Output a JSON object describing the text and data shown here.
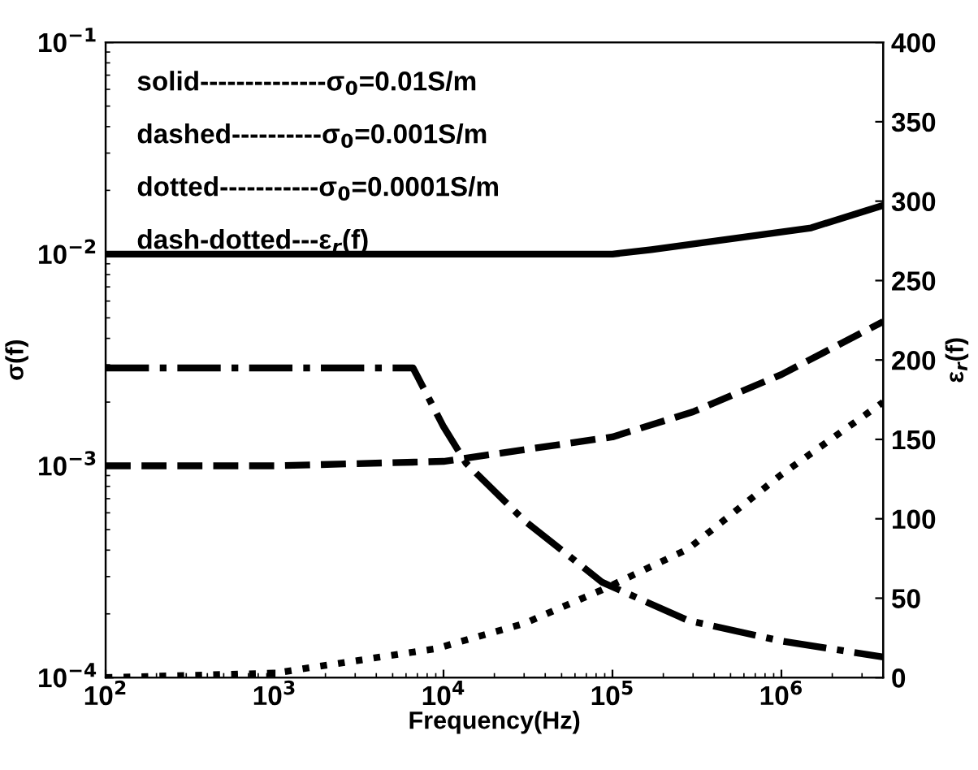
{
  "chart_data": {
    "type": "line",
    "xlabel": "Frequency(Hz)",
    "ylabel": "σ(f)",
    "y2label": "ε$_{r}$(f)",
    "log": "xy",
    "xlim": [
      100,
      4000000
    ],
    "xticks": [
      {
        "value": 100,
        "label": "10$^{2}$"
      },
      {
        "value": 1000,
        "label": "10$^{3}$"
      },
      {
        "value": 10000,
        "label": "10$^{4}$"
      },
      {
        "value": 100000,
        "label": "10$^{5}$"
      },
      {
        "value": 1000000,
        "label": "10$^{6}$"
      }
    ],
    "ylim": [
      0.0001,
      0.1
    ],
    "yticks": [
      {
        "value": 0.0001,
        "label": "10$^{−4}$"
      },
      {
        "value": 0.001,
        "label": "10$^{−3}$"
      },
      {
        "value": 0.01,
        "label": "10$^{−2}$"
      },
      {
        "value": 0.1,
        "label": "10$^{−1}$"
      }
    ],
    "y2lim": [
      0,
      400
    ],
    "y2ticks": [
      0,
      50,
      100,
      150,
      200,
      250,
      300,
      350,
      400
    ],
    "annotations": [
      "solid--------------σ$_{0}$=0.01S/m",
      "dashed----------σ$_{0}$=0.001S/m",
      "dotted-----------σ$_{0}$=0.0001S/m",
      "dash-dotted---ε$_{r}$(f)"
    ],
    "series": [
      {
        "color": "#000000",
        "line_style": "solid",
        "x": [
          100,
          1000,
          10000,
          100000,
          170000,
          1500000,
          4000000
        ],
        "values": [
          0.01,
          0.01,
          0.01,
          0.01,
          0.0105,
          0.0133,
          0.017
        ]
      },
      {
        "color": "#000000",
        "line_style": "dashed",
        "x": [
          100,
          1000,
          10000,
          100000,
          300000,
          1000000,
          4000000
        ],
        "values": [
          0.001,
          0.001,
          0.00105,
          0.00137,
          0.0018,
          0.0027,
          0.0048
        ]
      },
      {
        "color": "#000000",
        "line_style": "dotted",
        "x": [
          100,
          1000,
          9000,
          30000,
          87000,
          280000,
          1000000,
          4000000
        ],
        "values": [
          0.0001,
          0.000105,
          0.000137,
          0.00018,
          0.00026,
          0.000405,
          0.00091,
          0.002
        ]
      },
      {
        "color": "#000000",
        "line_style": "dashdot",
        "axis": "y2",
        "x": [
          100,
          6600,
          10000,
          13600,
          30000,
          87000,
          280000,
          1000000,
          4000000
        ],
        "values": [
          195,
          195,
          158,
          135,
          99,
          60,
          36,
          23,
          13
        ]
      }
    ]
  }
}
